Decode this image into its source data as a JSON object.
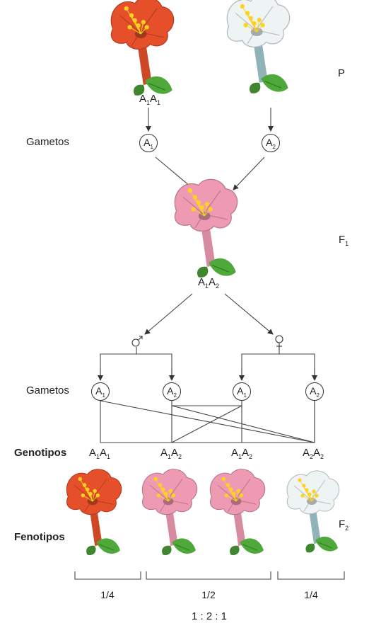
{
  "generations": {
    "p": "P",
    "f1_letter": "F",
    "f1_sub": "1",
    "f2_letter": "F",
    "f2_sub": "2"
  },
  "labels": {
    "gametos_top": "Gametos",
    "gametos_bottom": "Gametos",
    "genotipos": "Genotipos",
    "fenotipos": "Fenotipos"
  },
  "parent_genotype": {
    "a": "A",
    "s1": "1",
    "b": "A",
    "s2": "1"
  },
  "f1_genotype": {
    "a": "A",
    "s1": "1",
    "b": "A",
    "s2": "2"
  },
  "top_gametes": [
    {
      "letter": "A",
      "sub": "1"
    },
    {
      "letter": "A",
      "sub": "2"
    }
  ],
  "bottom_gametes": [
    {
      "letter": "A",
      "sub": "1"
    },
    {
      "letter": "A",
      "sub": "2"
    },
    {
      "letter": "A",
      "sub": "1"
    },
    {
      "letter": "A",
      "sub": "2"
    }
  ],
  "genotypes": [
    {
      "a": "A",
      "s1": "1",
      "b": "A",
      "s2": "1"
    },
    {
      "a": "A",
      "s1": "1",
      "b": "A",
      "s2": "2"
    },
    {
      "a": "A",
      "s1": "1",
      "b": "A",
      "s2": "2"
    },
    {
      "a": "A",
      "s1": "2",
      "b": "A",
      "s2": "2"
    }
  ],
  "fractions": [
    "1/4",
    "1/2",
    "1/4"
  ],
  "ratio": "1 : 2 : 1",
  "colors": {
    "red": "#e5502a",
    "pink": "#ef9ab3",
    "white": "#eef3f3",
    "stamen": "#ffd21f",
    "leaf": "#4fa83a"
  }
}
